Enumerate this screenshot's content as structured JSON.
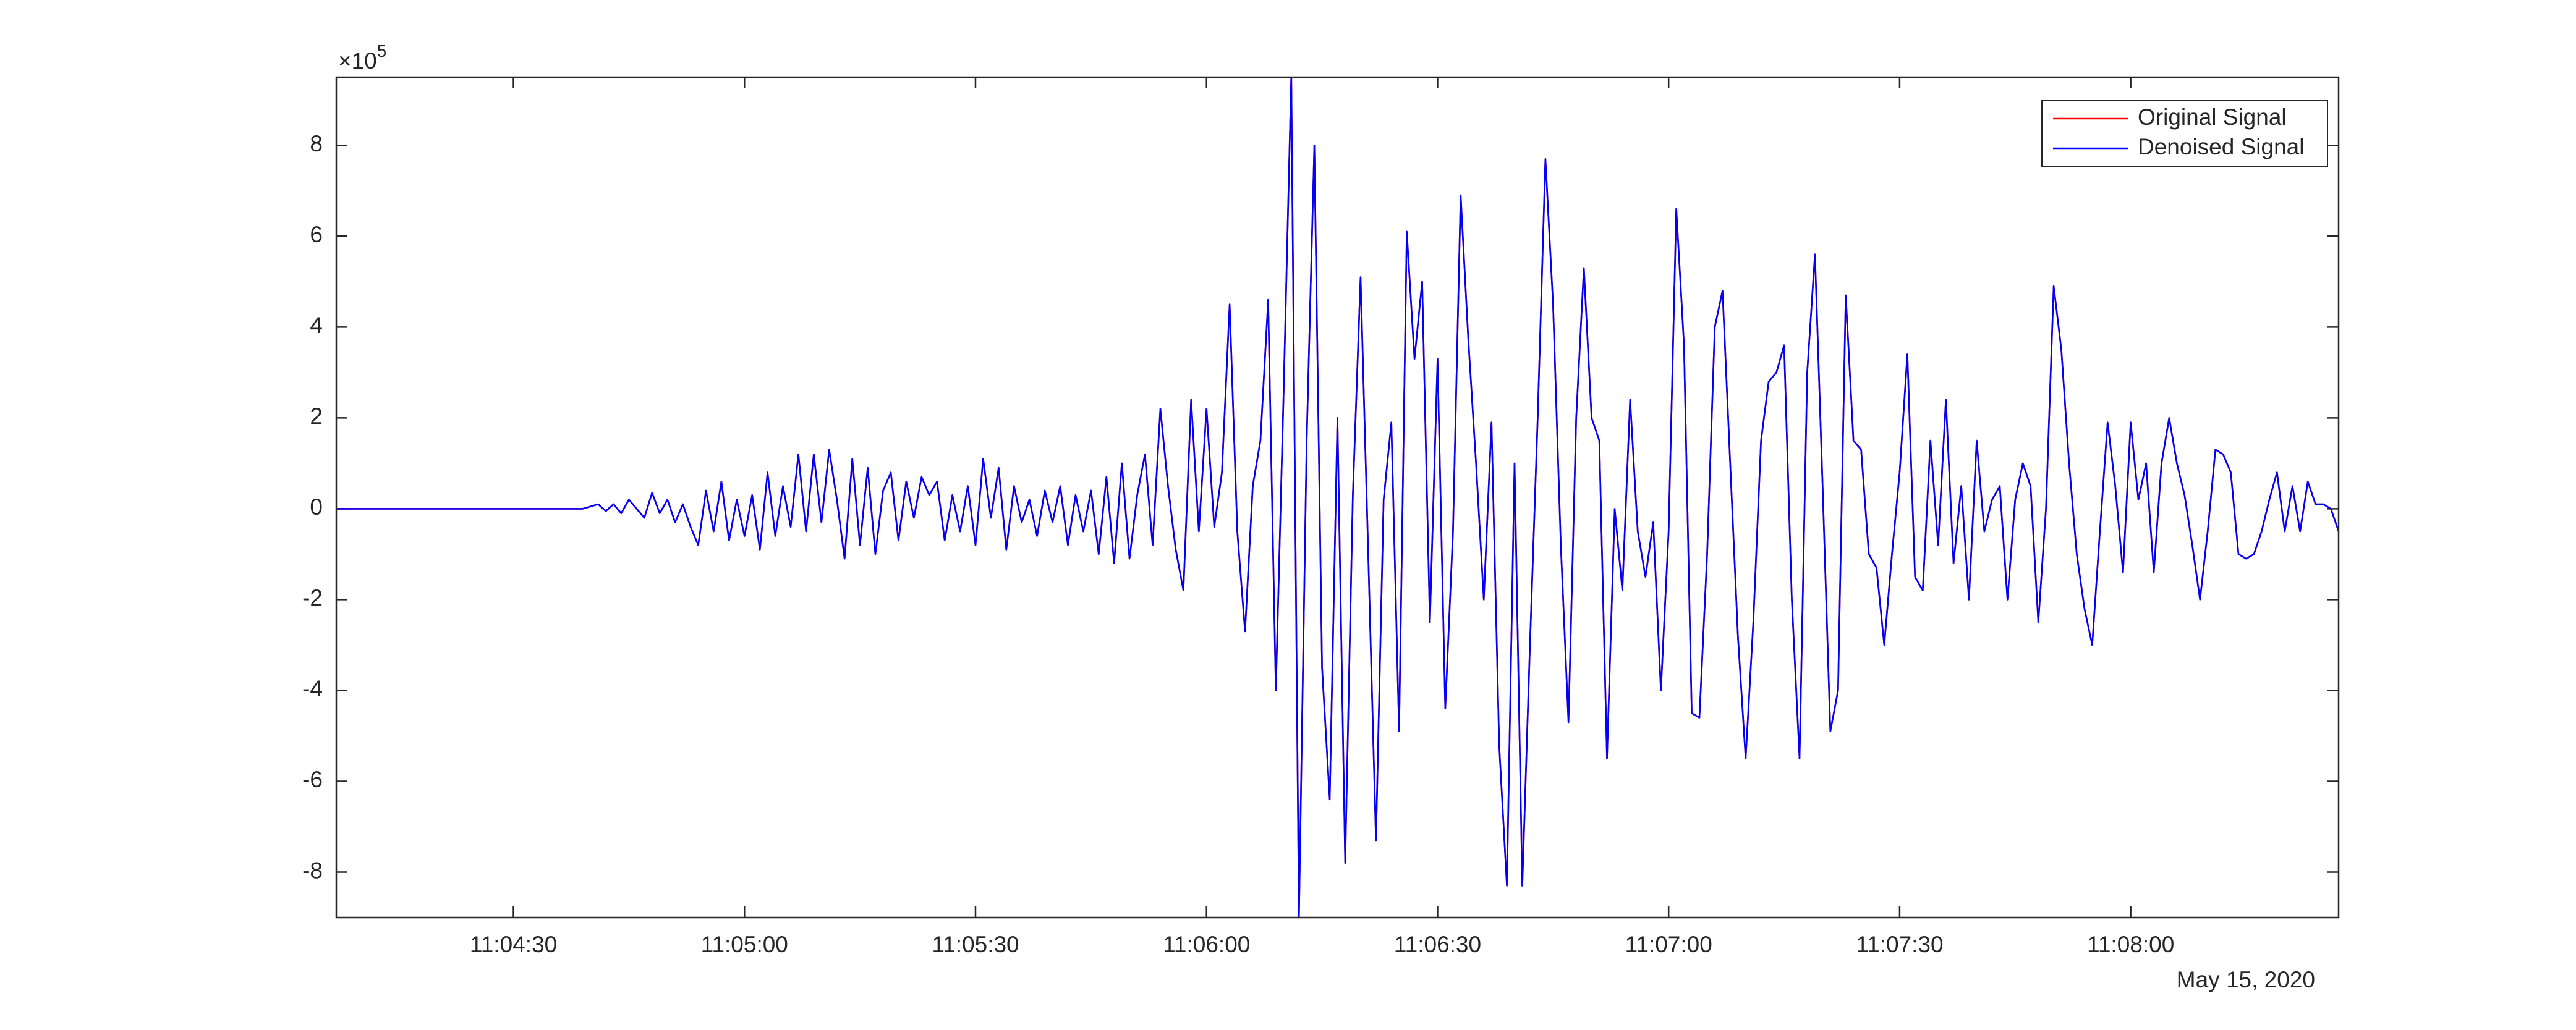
{
  "chart_data": {
    "type": "line",
    "y_scale_label": {
      "base": "×10",
      "exponent": "5"
    },
    "x_date_label": "May 15, 2020",
    "x": [
      "11:04:07",
      "11:04:08",
      "11:04:09",
      "11:04:10",
      "11:04:11",
      "11:04:12",
      "11:04:13",
      "11:04:14",
      "11:04:15",
      "11:04:16",
      "11:04:17",
      "11:04:18",
      "11:04:19",
      "11:04:20",
      "11:04:21",
      "11:04:22",
      "11:04:23",
      "11:04:24",
      "11:04:25",
      "11:04:26",
      "11:04:27",
      "11:04:28",
      "11:04:29",
      "11:04:30",
      "11:04:31",
      "11:04:32",
      "11:04:33",
      "11:04:34",
      "11:04:35",
      "11:04:36",
      "11:04:37",
      "11:04:38",
      "11:04:39",
      "11:04:40",
      "11:04:41",
      "11:04:42",
      "11:04:43",
      "11:04:44",
      "11:04:45",
      "11:04:46",
      "11:04:47",
      "11:04:48",
      "11:04:49",
      "11:04:50",
      "11:04:51",
      "11:04:52",
      "11:04:53",
      "11:04:54",
      "11:04:55",
      "11:04:56",
      "11:04:57",
      "11:04:58",
      "11:04:59",
      "11:05:00",
      "11:05:01",
      "11:05:02",
      "11:05:03",
      "11:05:04",
      "11:05:05",
      "11:05:06",
      "11:05:07",
      "11:05:08",
      "11:05:09",
      "11:05:10",
      "11:05:11",
      "11:05:12",
      "11:05:13",
      "11:05:14",
      "11:05:15",
      "11:05:16",
      "11:05:17",
      "11:05:18",
      "11:05:19",
      "11:05:20",
      "11:05:21",
      "11:05:22",
      "11:05:23",
      "11:05:24",
      "11:05:25",
      "11:05:26",
      "11:05:27",
      "11:05:28",
      "11:05:29",
      "11:05:30",
      "11:05:31",
      "11:05:32",
      "11:05:33",
      "11:05:34",
      "11:05:35",
      "11:05:36",
      "11:05:37",
      "11:05:38",
      "11:05:39",
      "11:05:40",
      "11:05:41",
      "11:05:42",
      "11:05:43",
      "11:05:44",
      "11:05:45",
      "11:05:46",
      "11:05:47",
      "11:05:48",
      "11:05:49",
      "11:05:50",
      "11:05:51",
      "11:05:52",
      "11:05:53",
      "11:05:54",
      "11:05:55",
      "11:05:56",
      "11:05:57",
      "11:05:58",
      "11:05:59",
      "11:06:00",
      "11:06:01",
      "11:06:02",
      "11:06:03",
      "11:06:04",
      "11:06:05",
      "11:06:06",
      "11:06:07",
      "11:06:08",
      "11:06:09",
      "11:06:10",
      "11:06:11",
      "11:06:12",
      "11:06:13",
      "11:06:14",
      "11:06:15",
      "11:06:16",
      "11:06:17",
      "11:06:18",
      "11:06:19",
      "11:06:20",
      "11:06:21",
      "11:06:22",
      "11:06:23",
      "11:06:24",
      "11:06:25",
      "11:06:26",
      "11:06:27",
      "11:06:28",
      "11:06:29",
      "11:06:30",
      "11:06:31",
      "11:06:32",
      "11:06:33",
      "11:06:34",
      "11:06:35",
      "11:06:36",
      "11:06:37",
      "11:06:38",
      "11:06:39",
      "11:06:40",
      "11:06:41",
      "11:06:42",
      "11:06:43",
      "11:06:44",
      "11:06:45",
      "11:06:46",
      "11:06:47",
      "11:06:48",
      "11:06:49",
      "11:06:50",
      "11:06:51",
      "11:06:52",
      "11:06:53",
      "11:06:54",
      "11:06:55",
      "11:06:56",
      "11:06:57",
      "11:06:58",
      "11:06:59",
      "11:07:00",
      "11:07:01",
      "11:07:02",
      "11:07:03",
      "11:07:04",
      "11:07:05",
      "11:07:06",
      "11:07:07",
      "11:07:08",
      "11:07:09",
      "11:07:10",
      "11:07:11",
      "11:07:12",
      "11:07:13",
      "11:07:14",
      "11:07:15",
      "11:07:16",
      "11:07:17",
      "11:07:18",
      "11:07:19",
      "11:07:20",
      "11:07:21",
      "11:07:22",
      "11:07:23",
      "11:07:24",
      "11:07:25",
      "11:07:26",
      "11:07:27",
      "11:07:28",
      "11:07:29",
      "11:07:30",
      "11:07:31",
      "11:07:32",
      "11:07:33",
      "11:07:34",
      "11:07:35",
      "11:07:36",
      "11:07:37",
      "11:07:38",
      "11:07:39",
      "11:07:40",
      "11:07:41",
      "11:07:42",
      "11:07:43",
      "11:07:44",
      "11:07:45",
      "11:07:46",
      "11:07:47",
      "11:07:48",
      "11:07:49",
      "11:07:50",
      "11:07:51",
      "11:07:52",
      "11:07:53",
      "11:07:54",
      "11:07:55",
      "11:07:56",
      "11:07:57",
      "11:07:58",
      "11:07:59",
      "11:08:00",
      "11:08:01",
      "11:08:02",
      "11:08:03",
      "11:08:04",
      "11:08:05",
      "11:08:06",
      "11:08:07",
      "11:08:08",
      "11:08:09",
      "11:08:10",
      "11:08:11",
      "11:08:12",
      "11:08:13",
      "11:08:14",
      "11:08:15",
      "11:08:16",
      "11:08:17",
      "11:08:18",
      "11:08:19",
      "11:08:20",
      "11:08:21",
      "11:08:22",
      "11:08:23",
      "11:08:24",
      "11:08:25",
      "11:08:26",
      "11:08:27"
    ],
    "series": [
      {
        "name": "Original Signal",
        "color": "#ff0000",
        "values": [
          0,
          0,
          0,
          0,
          0,
          0,
          0,
          0,
          0,
          0,
          0,
          0,
          0,
          0,
          0,
          0,
          0,
          0,
          0,
          0,
          0,
          0,
          0,
          0,
          0,
          0,
          0,
          0,
          0,
          0,
          0,
          0,
          0,
          0.05,
          0.1,
          -0.05,
          0.1,
          -0.1,
          0.2,
          0,
          -0.2,
          0.35,
          -0.1,
          0.2,
          -0.3,
          0.1,
          -0.4,
          -0.8,
          0.4,
          -0.5,
          0.6,
          -0.7,
          0.2,
          -0.6,
          0.3,
          -0.9,
          0.8,
          -0.6,
          0.5,
          -0.4,
          1.2,
          -0.5,
          1.2,
          -0.3,
          1.3,
          0.2,
          -1.1,
          1.1,
          -0.8,
          0.9,
          -1.0,
          0.4,
          0.8,
          -0.7,
          0.6,
          -0.2,
          0.7,
          0.3,
          0.6,
          -0.7,
          0.3,
          -0.5,
          0.5,
          -0.8,
          1.1,
          -0.2,
          0.9,
          -0.9,
          0.5,
          -0.3,
          0.2,
          -0.6,
          0.4,
          -0.3,
          0.5,
          -0.8,
          0.3,
          -0.5,
          0.4,
          -1.0,
          0.7,
          -1.2,
          1.0,
          -1.1,
          0.3,
          1.2,
          -0.8,
          2.2,
          0.5,
          -0.9,
          -1.8,
          2.4,
          -0.5,
          2.2,
          -0.4,
          0.8,
          4.5,
          -0.5,
          -2.7,
          0.5,
          1.5,
          4.6,
          -4.0,
          2.5,
          9.5,
          -9.0,
          1.5,
          8.0,
          -3.5,
          -6.4,
          2.0,
          -7.8,
          0.3,
          5.1,
          -1.0,
          -7.3,
          0.2,
          1.9,
          -4.9,
          6.1,
          3.3,
          5.0,
          -2.5,
          3.3,
          -4.4,
          -0.5,
          6.9,
          3.7,
          1.0,
          -2.0,
          1.9,
          -5.2,
          -8.3,
          1.0,
          -8.3,
          -3.0,
          2.0,
          7.7,
          4.5,
          -0.8,
          -4.7,
          2.0,
          5.3,
          2.0,
          1.5,
          -5.5,
          0,
          -1.8,
          2.4,
          -0.5,
          -1.5,
          -0.3,
          -4.0,
          -0.5,
          6.6,
          3.6,
          -4.5,
          -4.6,
          -1.0,
          4.0,
          4.8,
          1.0,
          -2.8,
          -5.5,
          -2.5,
          1.5,
          2.8,
          3.0,
          3.6,
          -2.0,
          -5.5,
          3.0,
          5.6,
          0.5,
          -4.9,
          -4.0,
          4.7,
          1.5,
          1.3,
          -1.0,
          -1.3,
          -3.0,
          -1.0,
          0.8,
          3.4,
          -1.5,
          -1.8,
          1.5,
          -0.8,
          2.4,
          -1.2,
          0.5,
          -2.0,
          1.5,
          -0.5,
          0.2,
          0.5,
          -2.0,
          0.2,
          1.0,
          0.5,
          -2.5,
          0,
          4.9,
          3.5,
          1.0,
          -1.0,
          -2.2,
          -3.0,
          -0.5,
          1.9,
          0.5,
          -1.4,
          1.9,
          0.2,
          1.0,
          -1.4,
          1.0,
          2.0,
          1.0,
          0.3,
          -0.8,
          -2.0,
          -0.5,
          1.3,
          1.2,
          0.8,
          -1.0,
          -1.1,
          -1.0,
          -0.5,
          0.2,
          0.8,
          -0.5,
          0.5,
          -0.5,
          0.6,
          0.1,
          0.1,
          0,
          -0.5
        ]
      },
      {
        "name": "Denoised Signal",
        "color": "#0000ff",
        "values": [
          0,
          0,
          0,
          0,
          0,
          0,
          0,
          0,
          0,
          0,
          0,
          0,
          0,
          0,
          0,
          0,
          0,
          0,
          0,
          0,
          0,
          0,
          0,
          0,
          0,
          0,
          0,
          0,
          0,
          0,
          0,
          0,
          0,
          0.05,
          0.1,
          -0.05,
          0.1,
          -0.1,
          0.2,
          0,
          -0.2,
          0.35,
          -0.1,
          0.2,
          -0.3,
          0.1,
          -0.4,
          -0.8,
          0.4,
          -0.5,
          0.6,
          -0.7,
          0.2,
          -0.6,
          0.3,
          -0.9,
          0.8,
          -0.6,
          0.5,
          -0.4,
          1.2,
          -0.5,
          1.2,
          -0.3,
          1.3,
          0.2,
          -1.1,
          1.1,
          -0.8,
          0.9,
          -1.0,
          0.4,
          0.8,
          -0.7,
          0.6,
          -0.2,
          0.7,
          0.3,
          0.6,
          -0.7,
          0.3,
          -0.5,
          0.5,
          -0.8,
          1.1,
          -0.2,
          0.9,
          -0.9,
          0.5,
          -0.3,
          0.2,
          -0.6,
          0.4,
          -0.3,
          0.5,
          -0.8,
          0.3,
          -0.5,
          0.4,
          -1.0,
          0.7,
          -1.2,
          1.0,
          -1.1,
          0.3,
          1.2,
          -0.8,
          2.2,
          0.5,
          -0.9,
          -1.8,
          2.4,
          -0.5,
          2.2,
          -0.4,
          0.8,
          4.5,
          -0.5,
          -2.7,
          0.5,
          1.5,
          4.6,
          -4.0,
          2.5,
          9.5,
          -9.0,
          1.5,
          8.0,
          -3.5,
          -6.4,
          2.0,
          -7.8,
          0.3,
          5.1,
          -1.0,
          -7.3,
          0.2,
          1.9,
          -4.9,
          6.1,
          3.3,
          5.0,
          -2.5,
          3.3,
          -4.4,
          -0.5,
          6.9,
          3.7,
          1.0,
          -2.0,
          1.9,
          -5.2,
          -8.3,
          1.0,
          -8.3,
          -3.0,
          2.0,
          7.7,
          4.5,
          -0.8,
          -4.7,
          2.0,
          5.3,
          2.0,
          1.5,
          -5.5,
          0,
          -1.8,
          2.4,
          -0.5,
          -1.5,
          -0.3,
          -4.0,
          -0.5,
          6.6,
          3.6,
          -4.5,
          -4.6,
          -1.0,
          4.0,
          4.8,
          1.0,
          -2.8,
          -5.5,
          -2.5,
          1.5,
          2.8,
          3.0,
          3.6,
          -2.0,
          -5.5,
          3.0,
          5.6,
          0.5,
          -4.9,
          -4.0,
          4.7,
          1.5,
          1.3,
          -1.0,
          -1.3,
          -3.0,
          -1.0,
          0.8,
          3.4,
          -1.5,
          -1.8,
          1.5,
          -0.8,
          2.4,
          -1.2,
          0.5,
          -2.0,
          1.5,
          -0.5,
          0.2,
          0.5,
          -2.0,
          0.2,
          1.0,
          0.5,
          -2.5,
          0,
          4.9,
          3.5,
          1.0,
          -1.0,
          -2.2,
          -3.0,
          -0.5,
          1.9,
          0.5,
          -1.4,
          1.9,
          0.2,
          1.0,
          -1.4,
          1.0,
          2.0,
          1.0,
          0.3,
          -0.8,
          -2.0,
          -0.5,
          1.3,
          1.2,
          0.8,
          -1.0,
          -1.1,
          -1.0,
          -0.5,
          0.2,
          0.8,
          -0.5,
          0.5,
          -0.5,
          0.6,
          0.1,
          0.1,
          0,
          -0.5
        ]
      }
    ],
    "xlim": [
      "11:04:07",
      "11:08:27"
    ],
    "xticks": [
      "11:04:30",
      "11:05:00",
      "11:05:30",
      "11:06:00",
      "11:06:30",
      "11:07:00",
      "11:07:30",
      "11:08:00"
    ],
    "ylim": [
      -9,
      9.5
    ],
    "yticks": [
      -8,
      -6,
      -4,
      -2,
      0,
      2,
      4,
      6,
      8
    ],
    "grid": false,
    "legend": "northeast"
  }
}
